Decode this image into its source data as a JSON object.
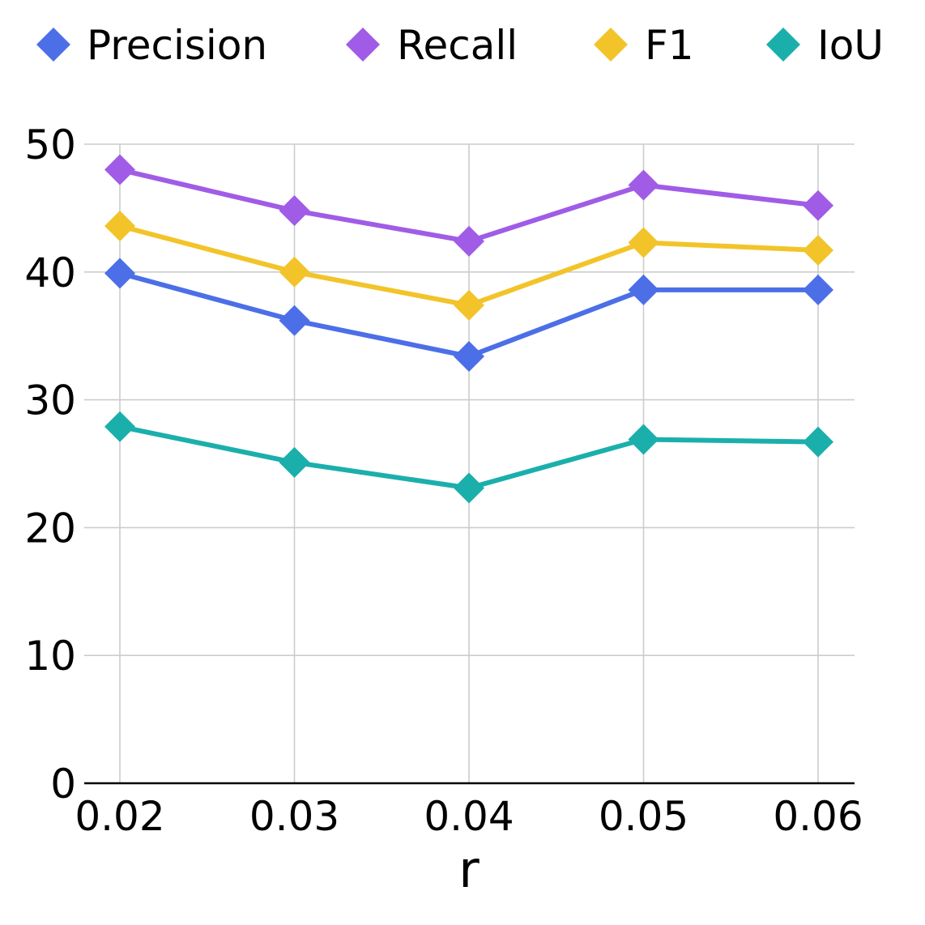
{
  "chart_data": {
    "type": "line",
    "title": "",
    "xlabel": "r",
    "ylabel": "",
    "categories": [
      "0.02",
      "0.03",
      "0.04",
      "0.05",
      "0.06"
    ],
    "ylim": [
      0,
      50
    ],
    "yticks": [
      "0",
      "10",
      "20",
      "30",
      "40",
      "50"
    ],
    "grid": true,
    "legend_position": "top",
    "marker": "diamond",
    "series": [
      {
        "name": "Precision",
        "color": "#4c6fe8",
        "values": [
          39.9,
          36.2,
          33.4,
          38.6,
          38.6
        ]
      },
      {
        "name": "Recall",
        "color": "#a05ce6",
        "values": [
          48.0,
          44.8,
          42.4,
          46.8,
          45.2
        ]
      },
      {
        "name": "F1",
        "color": "#f2c42a",
        "values": [
          43.6,
          40.0,
          37.4,
          42.3,
          41.7
        ]
      },
      {
        "name": "IoU",
        "color": "#1bafac",
        "values": [
          27.9,
          25.1,
          23.1,
          26.9,
          26.7
        ]
      }
    ]
  }
}
